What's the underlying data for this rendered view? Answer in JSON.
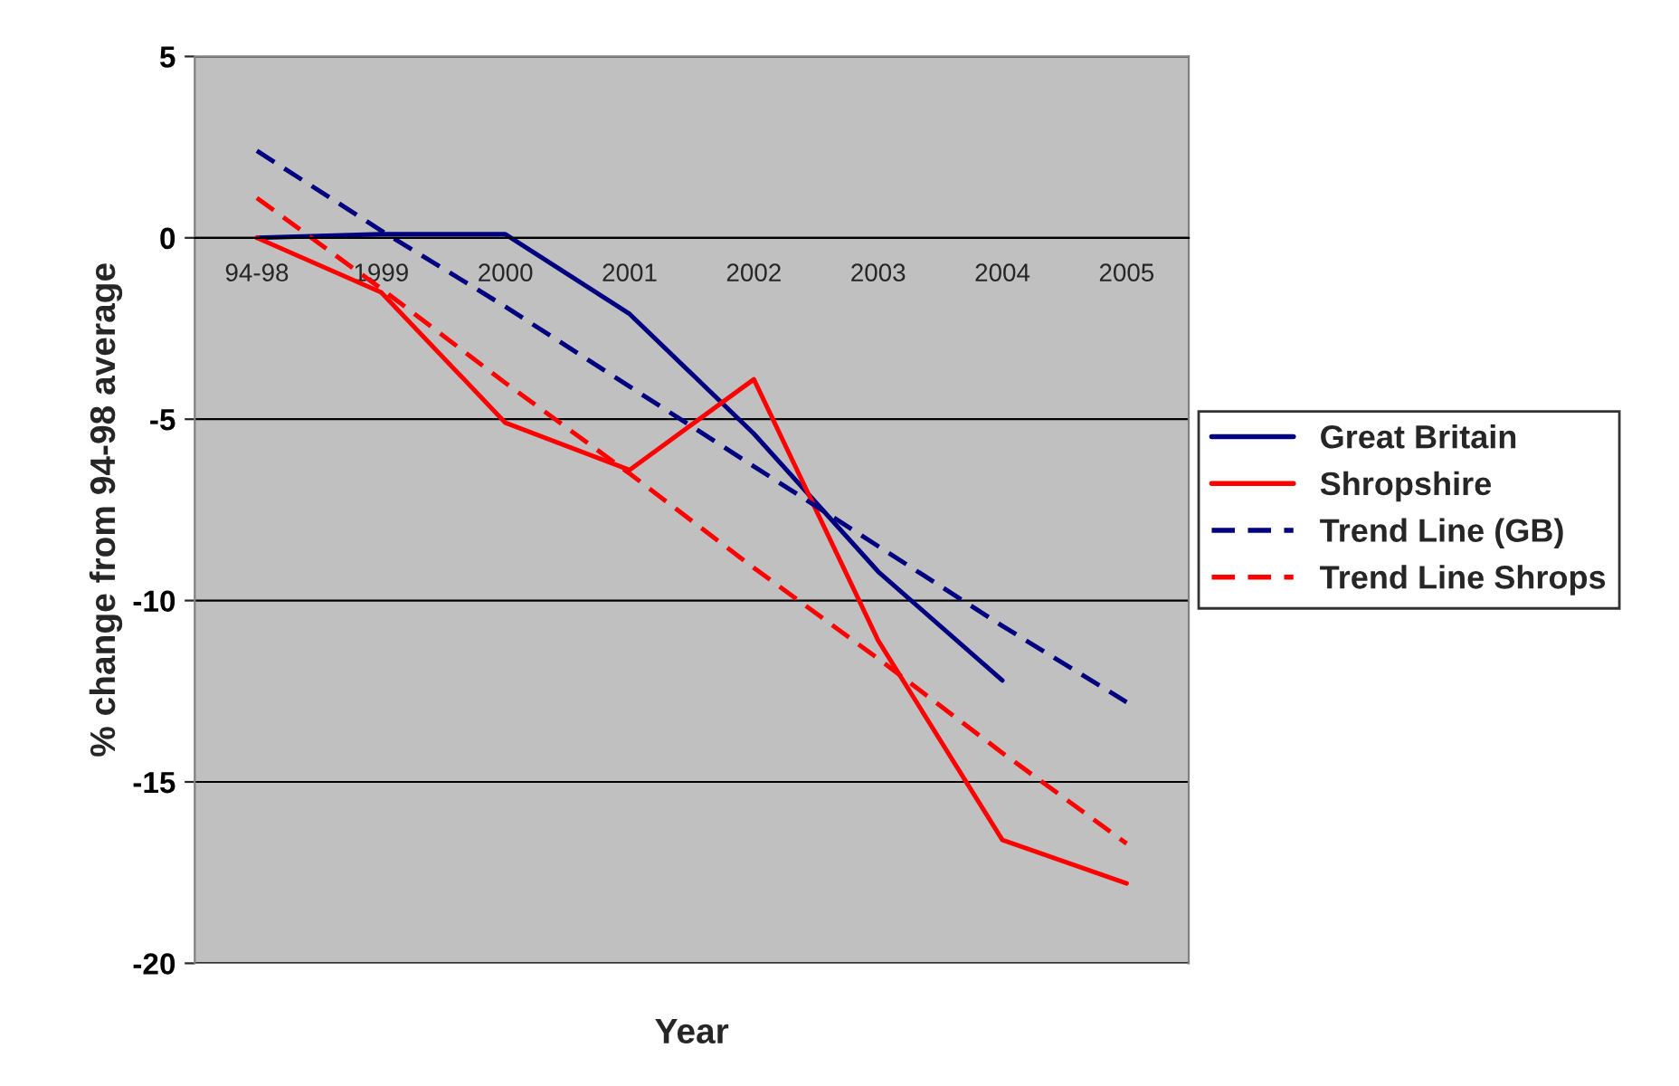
{
  "chart_data": {
    "type": "line",
    "xlabel": "Year",
    "ylabel": "% change from 94-98 average",
    "categories": [
      "94-98",
      "1999",
      "2000",
      "2001",
      "2002",
      "2003",
      "2004",
      "2005"
    ],
    "series": [
      {
        "name": "Great Britain",
        "color": "#000080",
        "line_style": "solid",
        "values": [
          0,
          0.1,
          0.1,
          -2.1,
          -5.4,
          -9.2,
          -12.2,
          null
        ]
      },
      {
        "name": "Shropshire",
        "color": "#ff0000",
        "line_style": "solid",
        "values": [
          0,
          -1.5,
          -5.1,
          -6.4,
          -3.9,
          -11.1,
          -16.6,
          -17.8
        ]
      },
      {
        "name": "Trend Line (GB)",
        "color": "#000080",
        "line_style": "dashed",
        "values": [
          2.4,
          0.2,
          -1.9,
          -4.1,
          -6.3,
          -8.5,
          -10.7,
          -12.8
        ]
      },
      {
        "name": "Trend Line Shrops",
        "color": "#ff0000",
        "line_style": "dashed",
        "values": [
          1.1,
          -1.4,
          -4.0,
          -6.5,
          -9.1,
          -11.6,
          -14.2,
          -16.7
        ]
      }
    ],
    "ylim": [
      -20,
      5
    ],
    "yticks": [
      -20,
      -15,
      -10,
      -5,
      0,
      5
    ],
    "grid": "y",
    "legend": "right",
    "marker": "none"
  }
}
